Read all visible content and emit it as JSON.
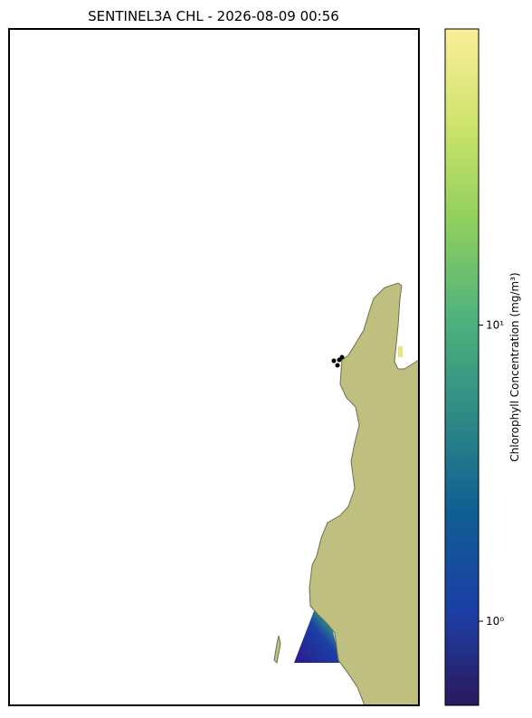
{
  "chart_data": {
    "type": "map",
    "title": "SENTINEL3A CHL - 2026-08-09 00:56",
    "colorbar": {
      "label": "Chlorophyll Concentration (mg/m³)",
      "log_scale": true,
      "ylim": [
        0.52,
        100
      ],
      "yticks": [
        {
          "value": 1,
          "label": "10⁰"
        },
        {
          "value": 10,
          "label": "10¹"
        }
      ],
      "colors": [
        "#2a1a5e",
        "#1d3fa6",
        "#0f5e93",
        "#2f8a86",
        "#4fb27c",
        "#8fcf5e",
        "#cde36a",
        "#fbee9a"
      ]
    }
  }
}
